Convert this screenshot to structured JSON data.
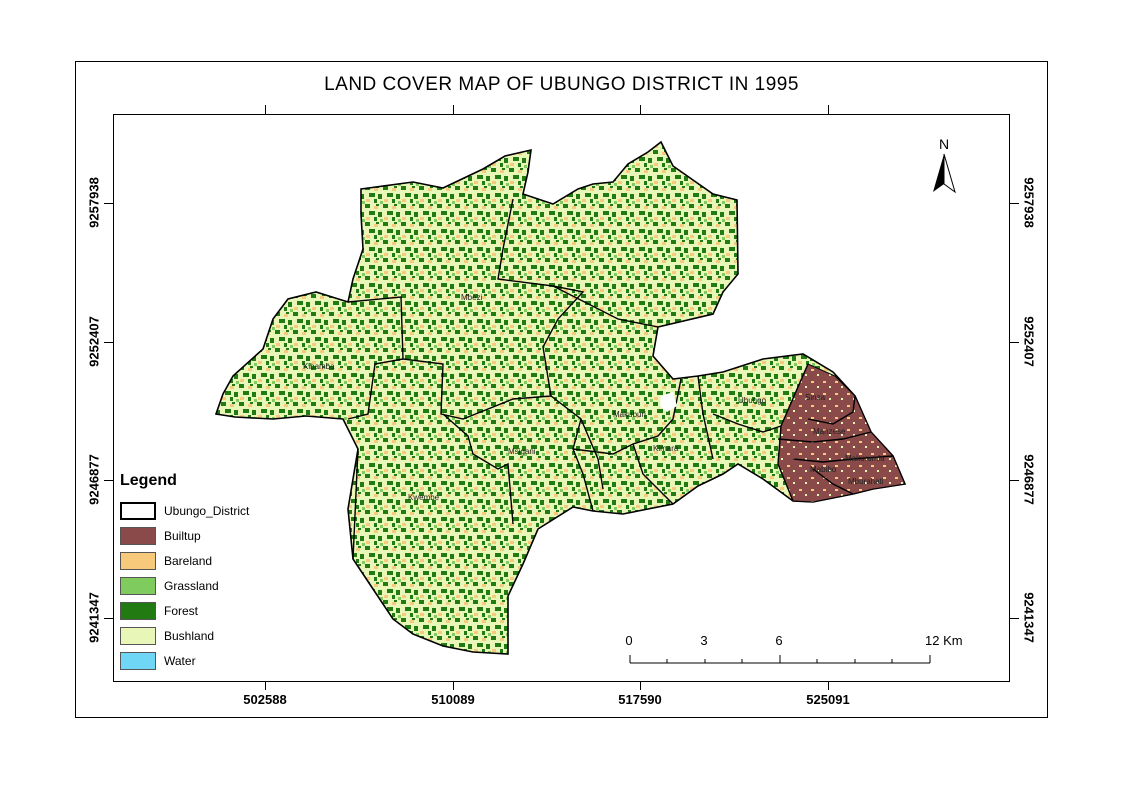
{
  "title": "LAND COVER MAP OF UBUNGO DISTRICT IN 1995",
  "north_arrow": {
    "label": "N"
  },
  "coordinates": {
    "x_ticks": [
      "502588",
      "510089",
      "517590",
      "525091"
    ],
    "y_ticks": [
      "9257938",
      "9252407",
      "9246877",
      "9241347"
    ]
  },
  "legend": {
    "title": "Legend",
    "items": [
      {
        "label": "Ubungo_District",
        "color": "#ffffff"
      },
      {
        "label": "Builtup",
        "color": "#8b4a4a"
      },
      {
        "label": "Bareland",
        "color": "#f7c97a"
      },
      {
        "label": "Grassland",
        "color": "#7fcb5e"
      },
      {
        "label": "Forest",
        "color": "#217a12"
      },
      {
        "label": "Bushland",
        "color": "#e8f7b8"
      },
      {
        "label": "Water",
        "color": "#6fd6f5"
      }
    ]
  },
  "scale_bar": {
    "labels": [
      "0",
      "3",
      "6",
      "12 Km"
    ]
  },
  "place_names": [
    {
      "name": "Mbezi"
    },
    {
      "name": "Kwembe"
    },
    {
      "name": "Msigani"
    },
    {
      "name": "Kibamba"
    },
    {
      "name": "Makuburi"
    },
    {
      "name": "Kimara"
    },
    {
      "name": "Ubungo"
    },
    {
      "name": "Sinza"
    },
    {
      "name": "Manzese"
    },
    {
      "name": "Mabibo"
    },
    {
      "name": "Makurumla"
    },
    {
      "name": "Mburahati"
    }
  ]
}
